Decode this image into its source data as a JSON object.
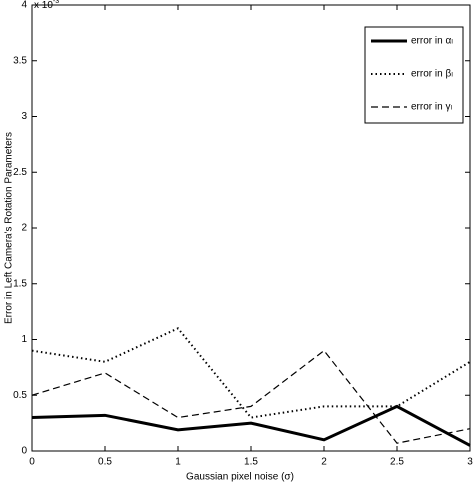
{
  "chart_data": {
    "type": "line",
    "x_label": "Gaussian pixel noise (σ)",
    "y_label": "Error in Left Camera's Rotation Parameters",
    "y_multiplier": "x 10",
    "y_multiplier_exponent": "-3",
    "x": [
      0,
      0.5,
      1,
      1.5,
      2,
      2.5,
      3
    ],
    "series": [
      {
        "name": "error in αₗ",
        "color": "#000000",
        "style": "solid",
        "width": 3,
        "values": [
          0.3,
          0.32,
          0.19,
          0.25,
          0.1,
          0.4,
          0.05
        ]
      },
      {
        "name": "error in βₗ",
        "color": "#000000",
        "style": "dotted",
        "width": 2,
        "values": [
          0.9,
          0.8,
          1.1,
          0.3,
          0.4,
          0.4,
          0.8
        ]
      },
      {
        "name": "error in γₗ",
        "color": "#000000",
        "style": "dashed",
        "width": 1.2,
        "values": [
          0.5,
          0.7,
          0.3,
          0.4,
          0.9,
          0.07,
          0.2
        ]
      }
    ],
    "xlim": [
      0,
      3
    ],
    "xticks": [
      0,
      0.5,
      1,
      1.5,
      2,
      2.5,
      3
    ],
    "ylim": [
      0,
      4
    ],
    "yticks": [
      0,
      0.5,
      1,
      1.5,
      2,
      2.5,
      3,
      3.5,
      4
    ],
    "grid": false,
    "legend": "top-right"
  }
}
